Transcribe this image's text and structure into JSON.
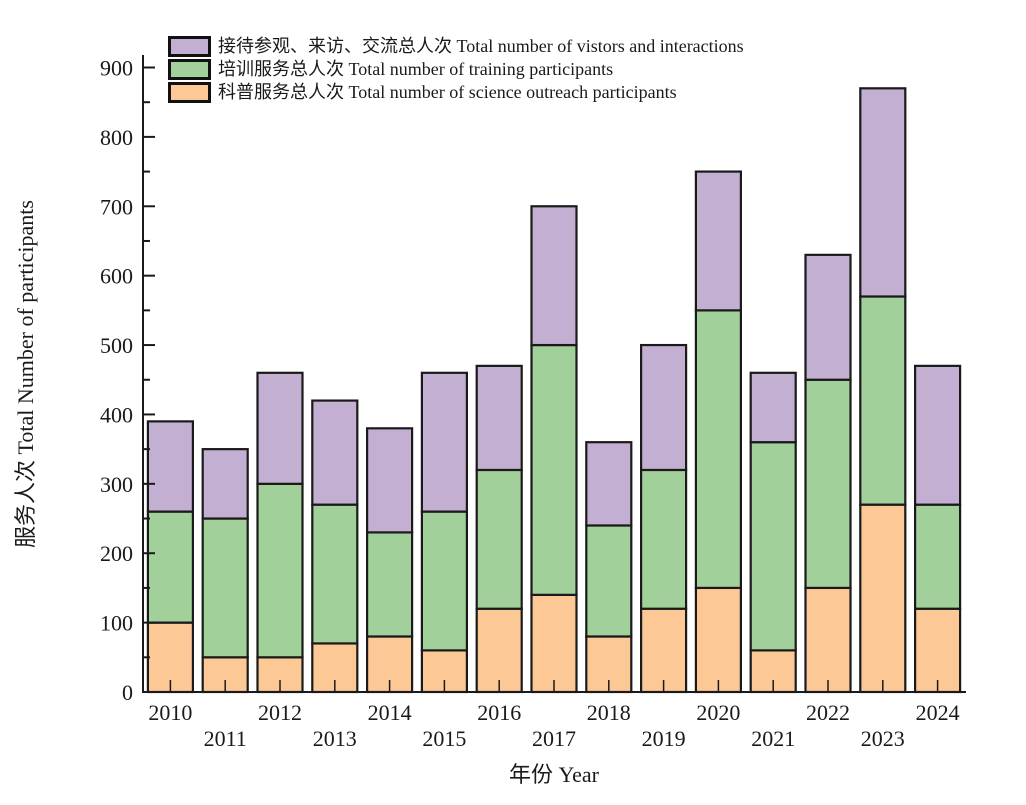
{
  "chart_data": {
    "type": "bar",
    "stacked": true,
    "title": "",
    "xlabel": "年份 Year",
    "ylabel": "服务人次 Total Number of participants",
    "categories": [
      "2010",
      "2011",
      "2012",
      "2013",
      "2014",
      "2015",
      "2016",
      "2017",
      "2018",
      "2019",
      "2020",
      "2021",
      "2022",
      "2023",
      "2024"
    ],
    "series": [
      {
        "name": "科普服务总人次 Total number of science outreach participants",
        "color": "#fbc896",
        "values": [
          100,
          50,
          50,
          70,
          80,
          60,
          120,
          140,
          80,
          120,
          150,
          60,
          150,
          270,
          120
        ]
      },
      {
        "name": "培训服务总人次 Total number of training participants",
        "color": "#a2d09b",
        "values": [
          160,
          200,
          250,
          200,
          150,
          200,
          200,
          360,
          160,
          200,
          400,
          300,
          300,
          300,
          150
        ]
      },
      {
        "name": "接待参观、来访、交流总人次 Total number of vistors and interactions",
        "color": "#c2afd1",
        "values": [
          130,
          100,
          160,
          150,
          150,
          200,
          150,
          200,
          120,
          180,
          200,
          100,
          180,
          300,
          200
        ]
      }
    ],
    "stack_totals": [
      390,
      350,
      460,
      420,
      380,
      460,
      470,
      700,
      360,
      500,
      750,
      460,
      630,
      870,
      470
    ],
    "ylim": [
      0,
      900
    ],
    "ytick_step": 100,
    "yminor_step": 50,
    "grid": false,
    "legend_position": "top-left",
    "bar_border_color": "#1a1a1a"
  },
  "legend": {
    "items": [
      {
        "label": "接待参观、来访、交流总人次 Total number of vistors and interactions",
        "color": "#c2afd1"
      },
      {
        "label": "培训服务总人次 Total number of training participants",
        "color": "#a2d09b"
      },
      {
        "label": "科普服务总人次 Total number of science outreach participants",
        "color": "#fbc896"
      }
    ]
  },
  "axes": {
    "x_title": "年份 Year",
    "y_title": "服务人次 Total Number of participants"
  }
}
